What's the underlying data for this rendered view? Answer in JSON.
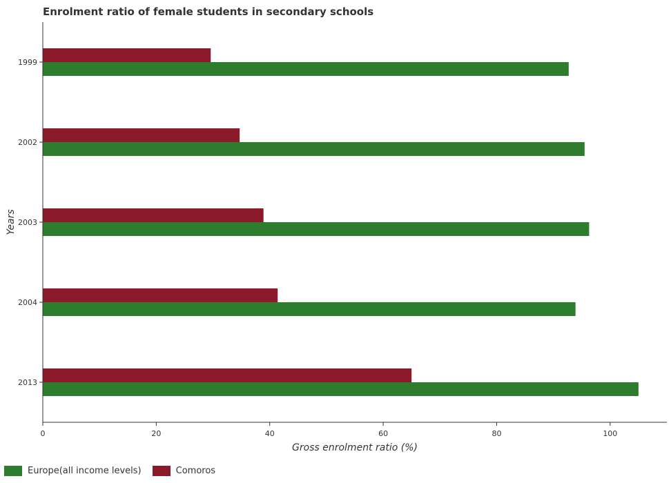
{
  "title": "Enrolment ratio of female students in secondary schools",
  "colors": {
    "europe": "#2e7d2e",
    "comoros": "#8b1a2b"
  },
  "chart_data": {
    "type": "bar",
    "orientation": "horizontal",
    "categories": [
      "1999",
      "2002",
      "2003",
      "2004",
      "2013"
    ],
    "series": [
      {
        "name": "Europe(all income levels)",
        "values": [
          92.7,
          95.5,
          96.3,
          93.9,
          105.0
        ]
      },
      {
        "name": "Comoros",
        "values": [
          29.6,
          34.7,
          38.9,
          41.4,
          65.0
        ]
      }
    ],
    "xlabel": "Gross enrolment ratio (%)",
    "ylabel": "Years",
    "xlim": [
      0,
      110
    ],
    "xticks": [
      0,
      20,
      40,
      60,
      80,
      100
    ],
    "grid": false,
    "legend_position": "bottom-left"
  }
}
